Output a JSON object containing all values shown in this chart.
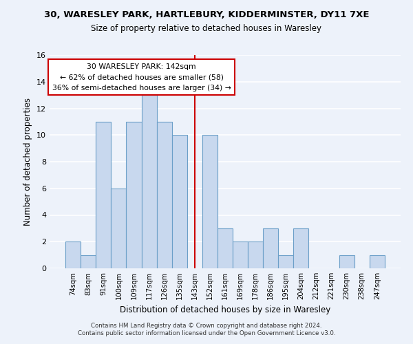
{
  "title_line1": "30, WARESLEY PARK, HARTLEBURY, KIDDERMINSTER, DY11 7XE",
  "title_line2": "Size of property relative to detached houses in Waresley",
  "xlabel": "Distribution of detached houses by size in Waresley",
  "ylabel": "Number of detached properties",
  "categories": [
    "74sqm",
    "83sqm",
    "91sqm",
    "100sqm",
    "109sqm",
    "117sqm",
    "126sqm",
    "135sqm",
    "143sqm",
    "152sqm",
    "161sqm",
    "169sqm",
    "178sqm",
    "186sqm",
    "195sqm",
    "204sqm",
    "212sqm",
    "221sqm",
    "230sqm",
    "238sqm",
    "247sqm"
  ],
  "values": [
    2,
    1,
    11,
    6,
    11,
    13,
    11,
    10,
    0,
    10,
    3,
    2,
    2,
    3,
    1,
    3,
    0,
    0,
    1,
    0,
    1
  ],
  "bar_color": "#c8d8ee",
  "bar_edge_color": "#6b9fc8",
  "marker_color": "#cc0000",
  "annotation_line1": "30 WARESLEY PARK: 142sqm",
  "annotation_line2": "← 62% of detached houses are smaller (58)",
  "annotation_line3": "36% of semi-detached houses are larger (34) →",
  "ylim": [
    0,
    16
  ],
  "yticks": [
    0,
    2,
    4,
    6,
    8,
    10,
    12,
    14,
    16
  ],
  "footnote1": "Contains HM Land Registry data © Crown copyright and database right 2024.",
  "footnote2": "Contains public sector information licensed under the Open Government Licence v3.0.",
  "background_color": "#edf2fa",
  "grid_color": "#ffffff",
  "box_edge_color": "#cc0000"
}
